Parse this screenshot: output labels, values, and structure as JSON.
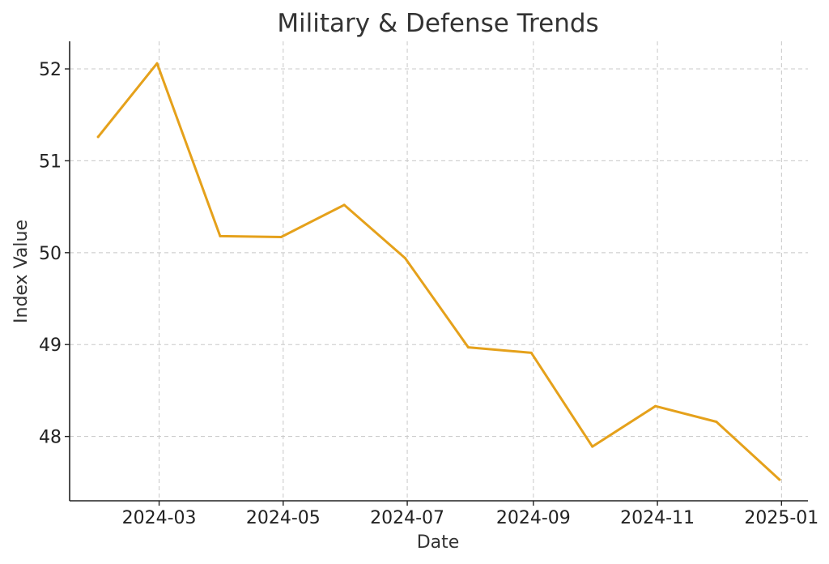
{
  "chart_data": {
    "type": "line",
    "title": "Military & Defense Trends",
    "xlabel": "Date",
    "ylabel": "Index Value",
    "x": [
      "2024-01-31",
      "2024-02-29",
      "2024-03-31",
      "2024-04-30",
      "2024-05-31",
      "2024-06-30",
      "2024-07-31",
      "2024-08-31",
      "2024-09-30",
      "2024-10-31",
      "2024-11-30",
      "2024-12-31"
    ],
    "series": [
      {
        "values": [
          51.26,
          52.06,
          50.18,
          50.17,
          50.52,
          49.94,
          48.97,
          48.91,
          47.89,
          48.33,
          48.16,
          47.53
        ]
      }
    ],
    "x_ticks": [
      "2024-03",
      "2024-05",
      "2024-07",
      "2024-09",
      "2024-11",
      "2025-01"
    ],
    "y_ticks": [
      48,
      49,
      50,
      51,
      52
    ],
    "xlim": [
      "2024-01-17",
      "2025-01-14"
    ],
    "ylim": [
      47.3,
      52.3
    ],
    "grid": true,
    "line_color": "#e5a11b"
  }
}
